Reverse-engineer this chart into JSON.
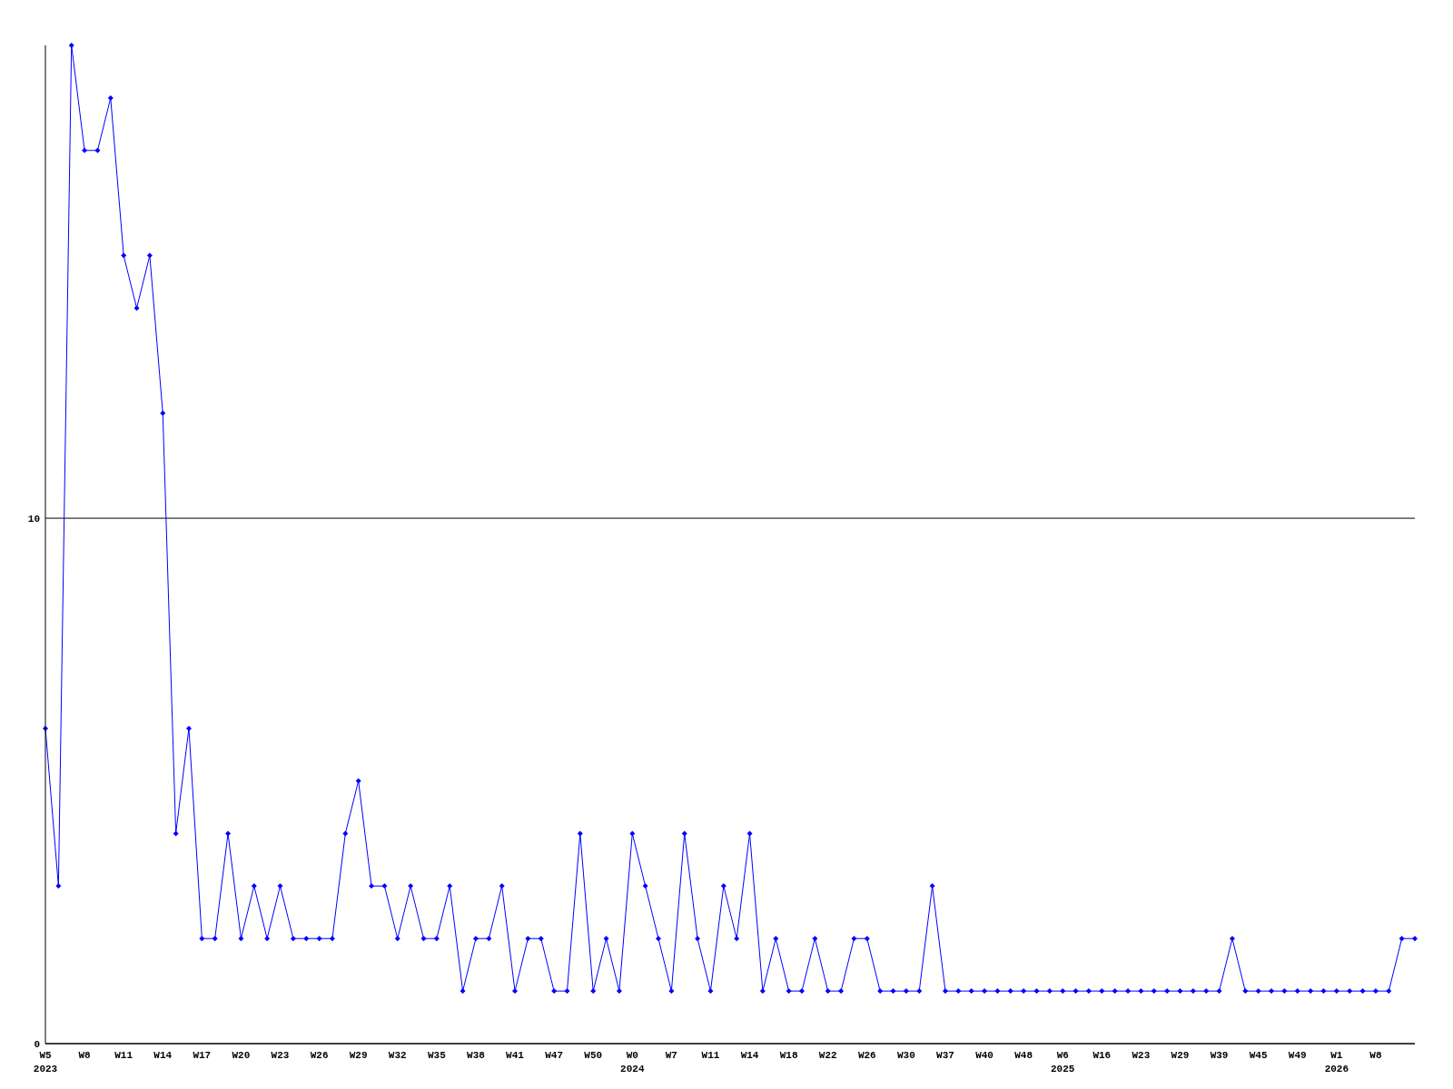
{
  "chart_data": {
    "type": "line",
    "categories": [
      "W5\n2023",
      null,
      null,
      "W8",
      null,
      null,
      "W11",
      null,
      null,
      "W14",
      null,
      null,
      "W17",
      null,
      null,
      "W20",
      null,
      null,
      "W23",
      null,
      null,
      "W26",
      null,
      null,
      "W29",
      null,
      null,
      "W32",
      null,
      null,
      "W35",
      null,
      null,
      "W38",
      null,
      null,
      "W41",
      null,
      null,
      "W47",
      null,
      null,
      "W50",
      null,
      null,
      "W0\n2024",
      null,
      null,
      "W7",
      null,
      null,
      "W11",
      null,
      null,
      "W14",
      null,
      null,
      "W18",
      null,
      null,
      "W22",
      null,
      null,
      "W26",
      null,
      null,
      "W30",
      null,
      null,
      "W37",
      null,
      null,
      "W40",
      null,
      null,
      "W48",
      null,
      null,
      "W6\n2025",
      null,
      null,
      "W16",
      null,
      null,
      "W23",
      null,
      null,
      "W29",
      null,
      null,
      "W39",
      null,
      null,
      "W45",
      null,
      null,
      "W49",
      null,
      null,
      "W1\n2026",
      null,
      null,
      "W8",
      null,
      null,
      null
    ],
    "series": [
      {
        "color": "#0000ff",
        "values": [
          6,
          3,
          19,
          17,
          17,
          18,
          15,
          14,
          15,
          12,
          4,
          6,
          2,
          2,
          4,
          2,
          3,
          2,
          3,
          2,
          2,
          2,
          2,
          4,
          5,
          3,
          3,
          2,
          3,
          2,
          2,
          3,
          1,
          2,
          2,
          3,
          1,
          2,
          2,
          1,
          1,
          4,
          1,
          2,
          1,
          4,
          3,
          2,
          1,
          4,
          2,
          1,
          3,
          2,
          4,
          1,
          2,
          1,
          1,
          2,
          1,
          1,
          2,
          2,
          1,
          1,
          1,
          1,
          3,
          1,
          1,
          1,
          1,
          1,
          1,
          1,
          1,
          1,
          1,
          1,
          1,
          1,
          1,
          1,
          1,
          1,
          1,
          1,
          1,
          1,
          1,
          2,
          1,
          1,
          1,
          1,
          1,
          1,
          1,
          1,
          1,
          1,
          1,
          1,
          2,
          2
        ]
      }
    ],
    "ylim": [
      0,
      19
    ],
    "yticks": [
      0,
      10
    ],
    "grid": "y",
    "marker": "diamond",
    "line_style": "solid"
  }
}
